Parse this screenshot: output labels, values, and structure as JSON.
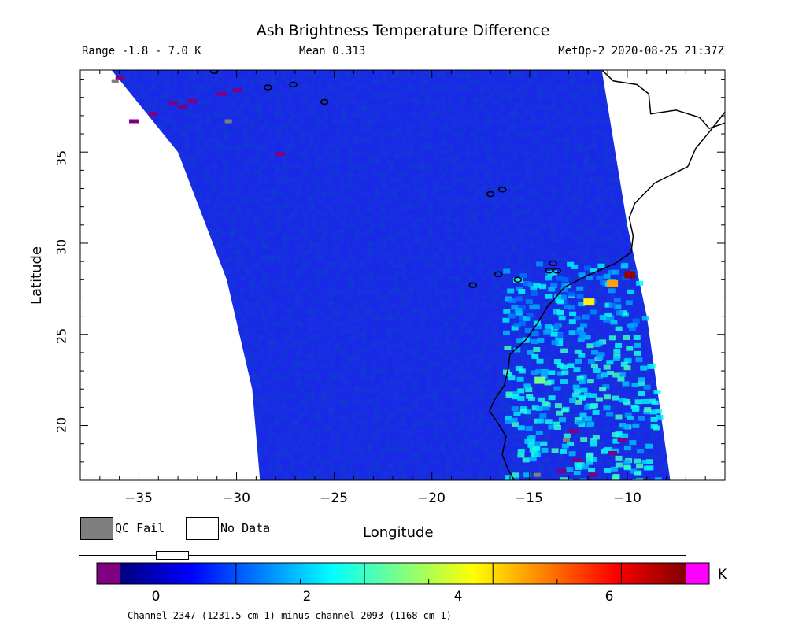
{
  "title": "Ash Brightness Temperature Difference",
  "range_text": "Range -1.8 - 7.0 K",
  "mean_text": "Mean 0.313",
  "satellite_time": "MetOp-2 2020-08-25 21:37Z",
  "axes": {
    "xlabel": "Longitude",
    "ylabel": "Latitude",
    "xlim": [
      -38,
      -5
    ],
    "ylim": [
      17,
      39.5
    ],
    "xticks": [
      -35,
      -30,
      -25,
      -20,
      -15,
      -10
    ],
    "yticks": [
      20,
      25,
      30,
      35
    ],
    "xtick_labels": [
      "−35",
      "−30",
      "−25",
      "−20",
      "−15",
      "−10"
    ],
    "ytick_labels": [
      "20",
      "25",
      "30",
      "35"
    ]
  },
  "legend": {
    "qc_fail_label": "QC Fail",
    "no_data_label": "No Data",
    "qc_fail_color": "#7f7f7f",
    "no_data_color": "#ffffff"
  },
  "colorbar": {
    "min": -1.8,
    "max": 7.0,
    "below_range_color": "#800080",
    "above_range_color": "#ff00ff",
    "colors": [
      "#00007f",
      "#0000ff",
      "#0080ff",
      "#00ffff",
      "#80ff80",
      "#ffff00",
      "#ff8000",
      "#ff0000",
      "#800000"
    ],
    "ticks": [
      "0",
      "2",
      "4",
      "6"
    ],
    "tick_values": [
      0,
      2,
      4,
      6
    ],
    "unit": "K"
  },
  "footer": "Channel 2347 (1231.5 cm-1) minus channel 2093 (1168 cm-1)",
  "chart_data": {
    "type": "heatmap",
    "title": "Ash Brightness Temperature Difference",
    "xlabel": "Longitude",
    "ylabel": "Latitude",
    "xlim": [
      -38,
      -5
    ],
    "ylim": [
      17,
      39.5
    ],
    "value_range": [
      -1.8,
      7.0
    ],
    "mean": 0.313,
    "unit": "K",
    "swath_edge_west": [
      [
        -36.4,
        39.5
      ],
      [
        -33,
        35
      ],
      [
        -30.5,
        28
      ],
      [
        -29.2,
        22
      ],
      [
        -28.8,
        17
      ]
    ],
    "swath_edge_east": [
      [
        -11.3,
        39.5
      ],
      [
        -10,
        31
      ],
      [
        -9,
        26
      ],
      [
        -7.8,
        17
      ]
    ],
    "hotspots": [
      {
        "lon": -9.9,
        "lat": 28.3,
        "value": 6.8
      },
      {
        "lon": -10.8,
        "lat": 27.8,
        "value": 4.5
      },
      {
        "lon": -12.0,
        "lat": 26.8,
        "value": 3.8
      },
      {
        "lon": -14.5,
        "lat": 22.5,
        "value": 2.5
      }
    ]
  }
}
